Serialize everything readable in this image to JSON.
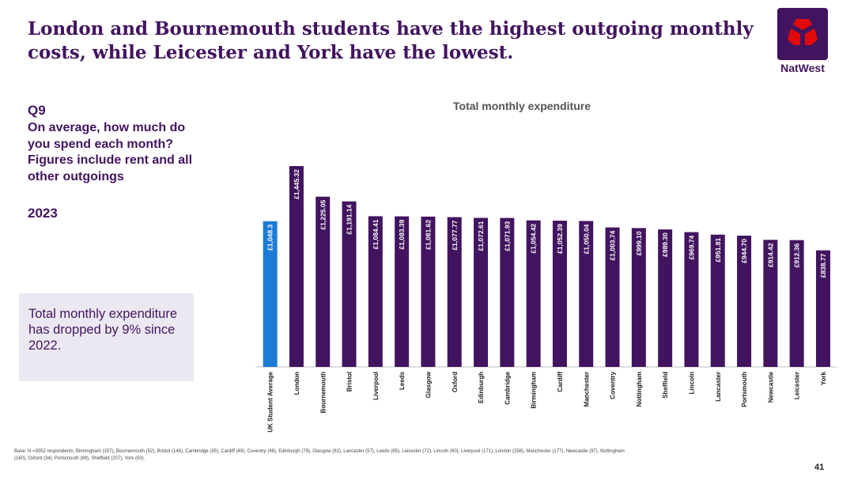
{
  "header": {
    "title": "London and Bournemouth students have the highest outgoing monthly costs, while Leicester and York have the lowest.",
    "logo_label": "NatWest"
  },
  "question": {
    "number": "Q9",
    "text": "On average, how much do you spend each month? Figures include rent and all other outgoings",
    "year": "2023"
  },
  "callout": {
    "text": "Total monthly expenditure has dropped by 9% since 2022."
  },
  "chart_data": {
    "type": "bar",
    "title": "Total monthly expenditure",
    "xlabel": "",
    "ylabel": "",
    "ylim": [
      0,
      1500
    ],
    "grid": false,
    "legend": "none",
    "categories": [
      "UK Student Average",
      "London",
      "Bournemouth",
      "Bristol",
      "Liverpool",
      "Leeds",
      "Glasgow",
      "Oxford",
      "Edinburgh",
      "Cambridge",
      "Birmingham",
      "Cardiff",
      "Manchester",
      "Coventry",
      "Nottingham",
      "Sheffield",
      "Lincoln",
      "Lancaster",
      "Portsmouth",
      "Newcastle",
      "Leicester",
      "York"
    ],
    "values": [
      1048.3,
      1445.32,
      1225.05,
      1191.14,
      1084.41,
      1083.39,
      1081.62,
      1077.77,
      1072.61,
      1071.93,
      1054.42,
      1052.39,
      1050.04,
      1003.74,
      999.1,
      989.3,
      969.74,
      951.81,
      944.7,
      914.42,
      912.36,
      838.77
    ],
    "labels": [
      "£1,048.3",
      "£1,445.32",
      "£1,225.05",
      "£1,191.14",
      "£1,084.41",
      "£1,083.39",
      "£1,081.62",
      "£1,077.77",
      "£1,072.61",
      "£1,071.93",
      "£1,054.42",
      "£1,052.39",
      "£1,050.04",
      "£1,003.74",
      "£999.10",
      "£989.30",
      "£969.74",
      "£951.81",
      "£944.70",
      "£914.42",
      "£912.36",
      "£838.77"
    ],
    "colors": {
      "highlight": "#1d7bd6",
      "bar": "#42145f",
      "axis": "#bfbfbf",
      "label": "#ffffff"
    }
  },
  "footnote": "Base: N =3052 respondents; Birmingham (157), Bournemouth (52), Bristol (148), Cambridge (35), Cardiff (49), Coventry (48), Edinburgh (79), Glasgow (82), Lancaster (57), Leeds (85), Leicester (72), Lincoln (60), Liverpool (171), London (258), Manchester (177), Newcastle (97), Nottingham (160), Oxford (34), Portsmouth (89), Sheffield (207), York (63).",
  "page_number": "41"
}
